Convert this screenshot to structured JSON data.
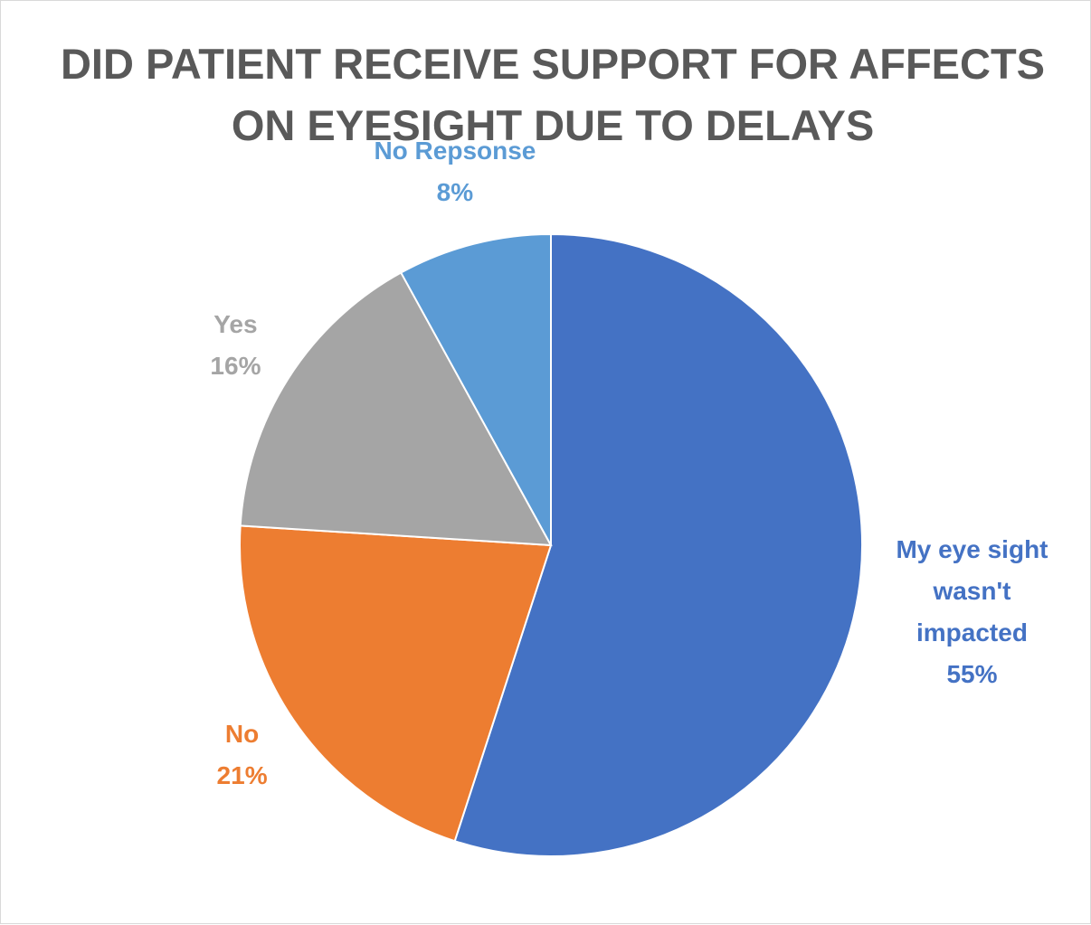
{
  "chart_data": {
    "type": "pie",
    "title": "DID PATIENT RECEIVE SUPPORT FOR AFFECTS ON EYESIGHT DUE TO DELAYS",
    "categories": [
      "My eye sight wasn't impacted",
      "No",
      "Yes",
      "No Repsonse"
    ],
    "values": [
      55,
      21,
      16,
      8
    ],
    "value_labels": [
      "55%",
      "21%",
      "16%",
      "8%"
    ],
    "colors": [
      "#4472c4",
      "#ed7d31",
      "#a5a5a5",
      "#5b9bd5"
    ]
  }
}
